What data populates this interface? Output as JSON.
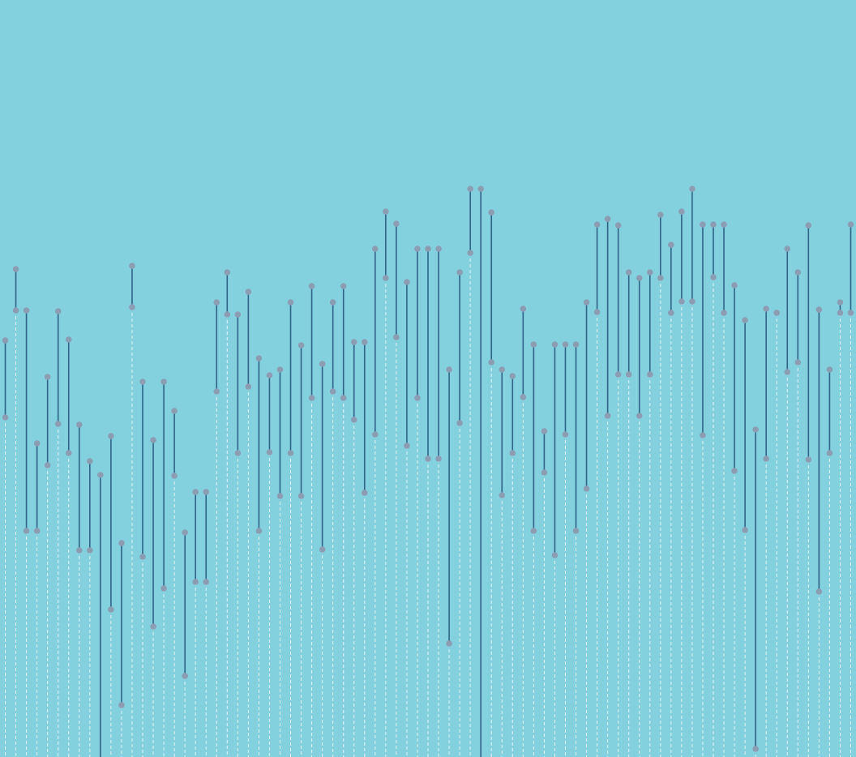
{
  "chart_data": {
    "type": "dumbbell",
    "title": "",
    "xlabel": "",
    "ylabel": "",
    "x": [
      1,
      2,
      3,
      4,
      5,
      6,
      7,
      8,
      9,
      10,
      11,
      12,
      13,
      14,
      15,
      16,
      17,
      18,
      19,
      20,
      21,
      22,
      23,
      24,
      25,
      26,
      27,
      28,
      29,
      30,
      31,
      32,
      33,
      34,
      35,
      36,
      37,
      38,
      39,
      40,
      41,
      42,
      43,
      44,
      45,
      46,
      47,
      48,
      49,
      50,
      51,
      52,
      53,
      54,
      55,
      56,
      57,
      58,
      59,
      60,
      61,
      62,
      63,
      64,
      65,
      66,
      67,
      68,
      69,
      70,
      71,
      72,
      73,
      74,
      75,
      76,
      77,
      78,
      79,
      80,
      81
    ],
    "series": [
      {
        "values": [
          514,
          602,
          551,
          387,
          469,
          550,
          515,
          410,
          365,
          348,
          396,
          264,
          606,
          463,
          391,
          463,
          427,
          277,
          327,
          327,
          561,
          598,
          546,
          574,
          492,
          471,
          478,
          561,
          508,
          581,
          485,
          561,
          581,
          512,
          512,
          627,
          673,
          658,
          586,
          627,
          627,
          627,
          478,
          598,
          701,
          701,
          672,
          478,
          470,
          553,
          509,
          402,
          509,
          509,
          509,
          561,
          657,
          664,
          656,
          598,
          591,
          598,
          669,
          632,
          673,
          701,
          657,
          657,
          657,
          582,
          539,
          404,
          553,
          548,
          627,
          598,
          656,
          552,
          478,
          561,
          657
        ]
      },
      {
        "values": [
          419,
          551,
          279,
          279,
          360,
          411,
          375,
          255,
          255,
          -20,
          182,
          64,
          555,
          247,
          161,
          208,
          347,
          100,
          216,
          216,
          451,
          546,
          375,
          457,
          279,
          376,
          322,
          375,
          322,
          443,
          256,
          451,
          443,
          416,
          326,
          398,
          591,
          518,
          384,
          443,
          368,
          368,
          140,
          412,
          622,
          -20,
          487,
          323,
          375,
          444,
          279,
          351,
          249,
          398,
          279,
          331,
          549,
          421,
          472,
          472,
          421,
          472,
          591,
          548,
          562,
          562,
          397,
          592,
          548,
          353,
          280,
          10,
          368,
          548,
          475,
          487,
          367,
          204,
          375,
          548,
          548
        ]
      }
    ],
    "xlim": [
      0.5,
      81.5
    ],
    "ylim": [
      934,
      0
    ]
  },
  "colors": {
    "background": "#83d1de",
    "stem": "#2e6487",
    "marker": "#8c9db3",
    "dashed_line": "#f2f8fa"
  }
}
